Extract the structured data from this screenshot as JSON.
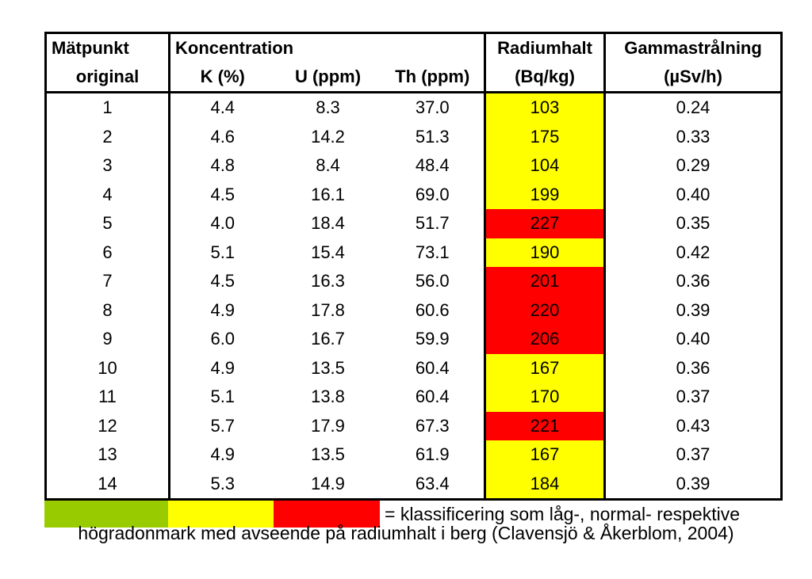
{
  "table": {
    "headers": {
      "col1_line1": "Mätpunkt",
      "col1_line2": "original",
      "group_label": "Koncentration",
      "k": "K (%)",
      "u": "U (ppm)",
      "th": "Th (ppm)",
      "radium_line1": "Radiumhalt",
      "radium_line2": "(Bq/kg)",
      "gamma_line1": "Gammastrålning",
      "gamma_line2": "(µSv/h)"
    },
    "rows": [
      {
        "point": "1",
        "k": "4.4",
        "u": "8.3",
        "th": "37.0",
        "radium": "103",
        "gamma": "0.24",
        "class": "normal"
      },
      {
        "point": "2",
        "k": "4.6",
        "u": "14.2",
        "th": "51.3",
        "radium": "175",
        "gamma": "0.33",
        "class": "normal"
      },
      {
        "point": "3",
        "k": "4.8",
        "u": "8.4",
        "th": "48.4",
        "radium": "104",
        "gamma": "0.29",
        "class": "normal"
      },
      {
        "point": "4",
        "k": "4.5",
        "u": "16.1",
        "th": "69.0",
        "radium": "199",
        "gamma": "0.40",
        "class": "normal"
      },
      {
        "point": "5",
        "k": "4.0",
        "u": "18.4",
        "th": "51.7",
        "radium": "227",
        "gamma": "0.35",
        "class": "high"
      },
      {
        "point": "6",
        "k": "5.1",
        "u": "15.4",
        "th": "73.1",
        "radium": "190",
        "gamma": "0.42",
        "class": "normal"
      },
      {
        "point": "7",
        "k": "4.5",
        "u": "16.3",
        "th": "56.0",
        "radium": "201",
        "gamma": "0.36",
        "class": "high"
      },
      {
        "point": "8",
        "k": "4.9",
        "u": "17.8",
        "th": "60.6",
        "radium": "220",
        "gamma": "0.39",
        "class": "high"
      },
      {
        "point": "9",
        "k": "6.0",
        "u": "16.7",
        "th": "59.9",
        "radium": "206",
        "gamma": "0.40",
        "class": "high"
      },
      {
        "point": "10",
        "k": "4.9",
        "u": "13.5",
        "th": "60.4",
        "radium": "167",
        "gamma": "0.36",
        "class": "normal"
      },
      {
        "point": "11",
        "k": "5.1",
        "u": "13.8",
        "th": "60.4",
        "radium": "170",
        "gamma": "0.37",
        "class": "normal"
      },
      {
        "point": "12",
        "k": "5.7",
        "u": "17.9",
        "th": "67.3",
        "radium": "221",
        "gamma": "0.43",
        "class": "high"
      },
      {
        "point": "13",
        "k": "4.9",
        "u": "13.5",
        "th": "61.9",
        "radium": "167",
        "gamma": "0.37",
        "class": "normal"
      },
      {
        "point": "14",
        "k": "5.3",
        "u": "14.9",
        "th": "63.4",
        "radium": "184",
        "gamma": "0.39",
        "class": "normal"
      }
    ]
  },
  "colors": {
    "low": "#99cc00",
    "normal": "#ffff00",
    "high": "#ff0000"
  },
  "legend": {
    "text": "= klassificering som låg-, normal- respektive",
    "caption": "högradonmark med avseende på radiumhalt i berg (Clavensjö & Åkerblom, 2004)"
  }
}
